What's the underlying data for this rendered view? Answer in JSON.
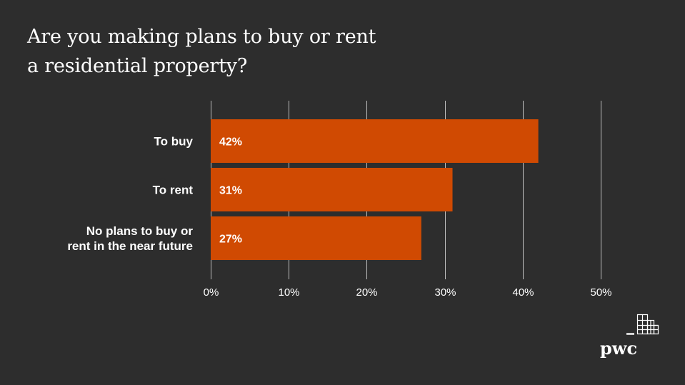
{
  "title_lines": [
    "Are you making plans to buy or rent",
    "a residential property?"
  ],
  "brand": {
    "logo_text": "pwc",
    "logo_icon": "pwc-building-mark-icon"
  },
  "colors": {
    "background": "#2d2d2d",
    "bar": "#d04a02",
    "gridline": "#bdbdbd",
    "text": "#ffffff"
  },
  "chart_data": {
    "type": "bar",
    "orientation": "horizontal",
    "categories": [
      [
        "To buy"
      ],
      [
        "To rent"
      ],
      [
        "No plans to buy or",
        "rent in the near future"
      ]
    ],
    "values": [
      42,
      31,
      27
    ],
    "value_labels": [
      "42%",
      "31%",
      "27%"
    ],
    "xlim": [
      0,
      50
    ],
    "x_ticks": [
      0,
      10,
      20,
      30,
      40,
      50
    ],
    "x_tick_labels": [
      "0%",
      "10%",
      "20%",
      "30%",
      "40%",
      "50%"
    ],
    "grid": true,
    "legend": "none"
  }
}
